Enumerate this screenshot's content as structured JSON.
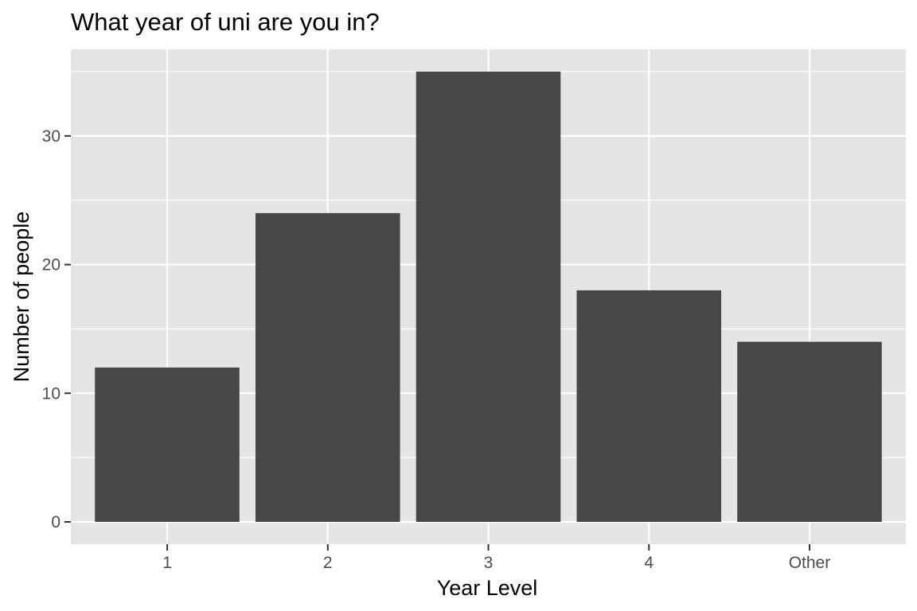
{
  "chart_data": {
    "type": "bar",
    "title": "What year of uni are you in?",
    "xlabel": "Year Level",
    "ylabel": "Number of people",
    "categories": [
      "1",
      "2",
      "3",
      "4",
      "Other"
    ],
    "values": [
      12,
      24,
      35,
      18,
      14
    ],
    "ylim": [
      0,
      36.75
    ],
    "yticks": [
      0,
      10,
      20,
      30
    ],
    "yticks_minor": [
      5,
      15,
      25,
      35
    ],
    "ytick_labels": [
      "0",
      "10",
      "20",
      "30"
    ],
    "grid": true,
    "legend": "none",
    "colors": {
      "bar": "#474747",
      "panel": "#e5e5e5",
      "grid": "#ffffff",
      "tick_text": "#4d4d4d",
      "tick_mark": "#333333"
    }
  }
}
